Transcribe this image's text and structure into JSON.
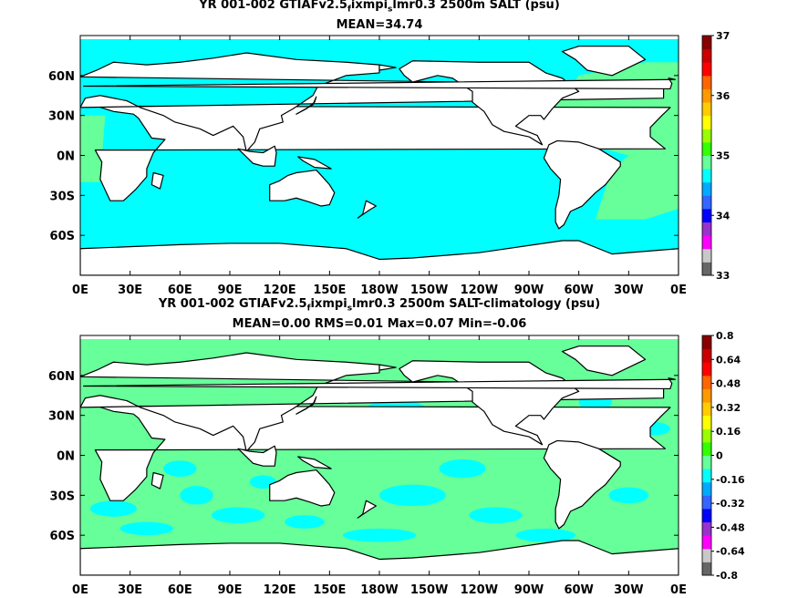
{
  "chart_data": [
    {
      "type": "heatmap",
      "title_parts": [
        "YR 001-002 GTIAFv2.5",
        "f",
        "ixmpi",
        "s",
        "lmr0.3 2500m SALT (psu)"
      ],
      "subtitle": "MEAN=34.74",
      "lat_labels": [
        "60N",
        "30N",
        "0N",
        "30S",
        "60S"
      ],
      "lon_labels": [
        "0E",
        "30E",
        "60E",
        "90E",
        "120E",
        "150E",
        "180W",
        "150W",
        "120W",
        "90W",
        "60W",
        "30W",
        "0E"
      ],
      "colorbar": {
        "labels": [
          "37",
          "36",
          "35",
          "34",
          "33"
        ],
        "range": [
          33,
          37
        ],
        "colors": [
          "#666666",
          "#c8c8c8",
          "#ff00ff",
          "#9933cc",
          "#0000ff",
          "#3366ff",
          "#00aaff",
          "#00ffff",
          "#66ff99",
          "#33ff00",
          "#99ff00",
          "#ffff00",
          "#ffcc00",
          "#ff9900",
          "#ff6600",
          "#ff0000",
          "#cc0000",
          "#880000"
        ]
      },
      "field_colors": {
        "ocean": "#00ffff",
        "high_salt": "#66ff99",
        "land": "#ffffff"
      }
    },
    {
      "type": "heatmap",
      "title_parts": [
        "YR 001-002 GTIAFv2.5",
        "f",
        "ixmpi",
        "s",
        "lmr0.3 2500m SALT-climatology (psu)"
      ],
      "subtitle": "MEAN=0.00   RMS=0.01   Max=0.07   Min=-0.06",
      "lat_labels": [
        "60N",
        "30N",
        "0N",
        "30S",
        "60S"
      ],
      "lon_labels": [
        "0E",
        "30E",
        "60E",
        "90E",
        "120E",
        "150E",
        "180W",
        "150W",
        "120W",
        "90W",
        "60W",
        "30W",
        "0E"
      ],
      "colorbar": {
        "labels": [
          "0.8",
          "0.64",
          "0.48",
          "0.32",
          "0.16",
          "0",
          "-0.16",
          "-0.32",
          "-0.48",
          "-0.64",
          "-0.8"
        ],
        "range": [
          -0.8,
          0.8
        ],
        "colors": [
          "#666666",
          "#c8c8c8",
          "#ff00ff",
          "#9933cc",
          "#0000ff",
          "#3366ff",
          "#00aaff",
          "#00ffff",
          "#66ff99",
          "#33ff00",
          "#99ff00",
          "#ffff00",
          "#ffcc00",
          "#ff9900",
          "#ff6600",
          "#ff0000",
          "#cc0000",
          "#880000"
        ]
      },
      "field_colors": {
        "ocean": "#66ff99",
        "low_anom": "#00ffff",
        "land": "#ffffff"
      }
    }
  ]
}
